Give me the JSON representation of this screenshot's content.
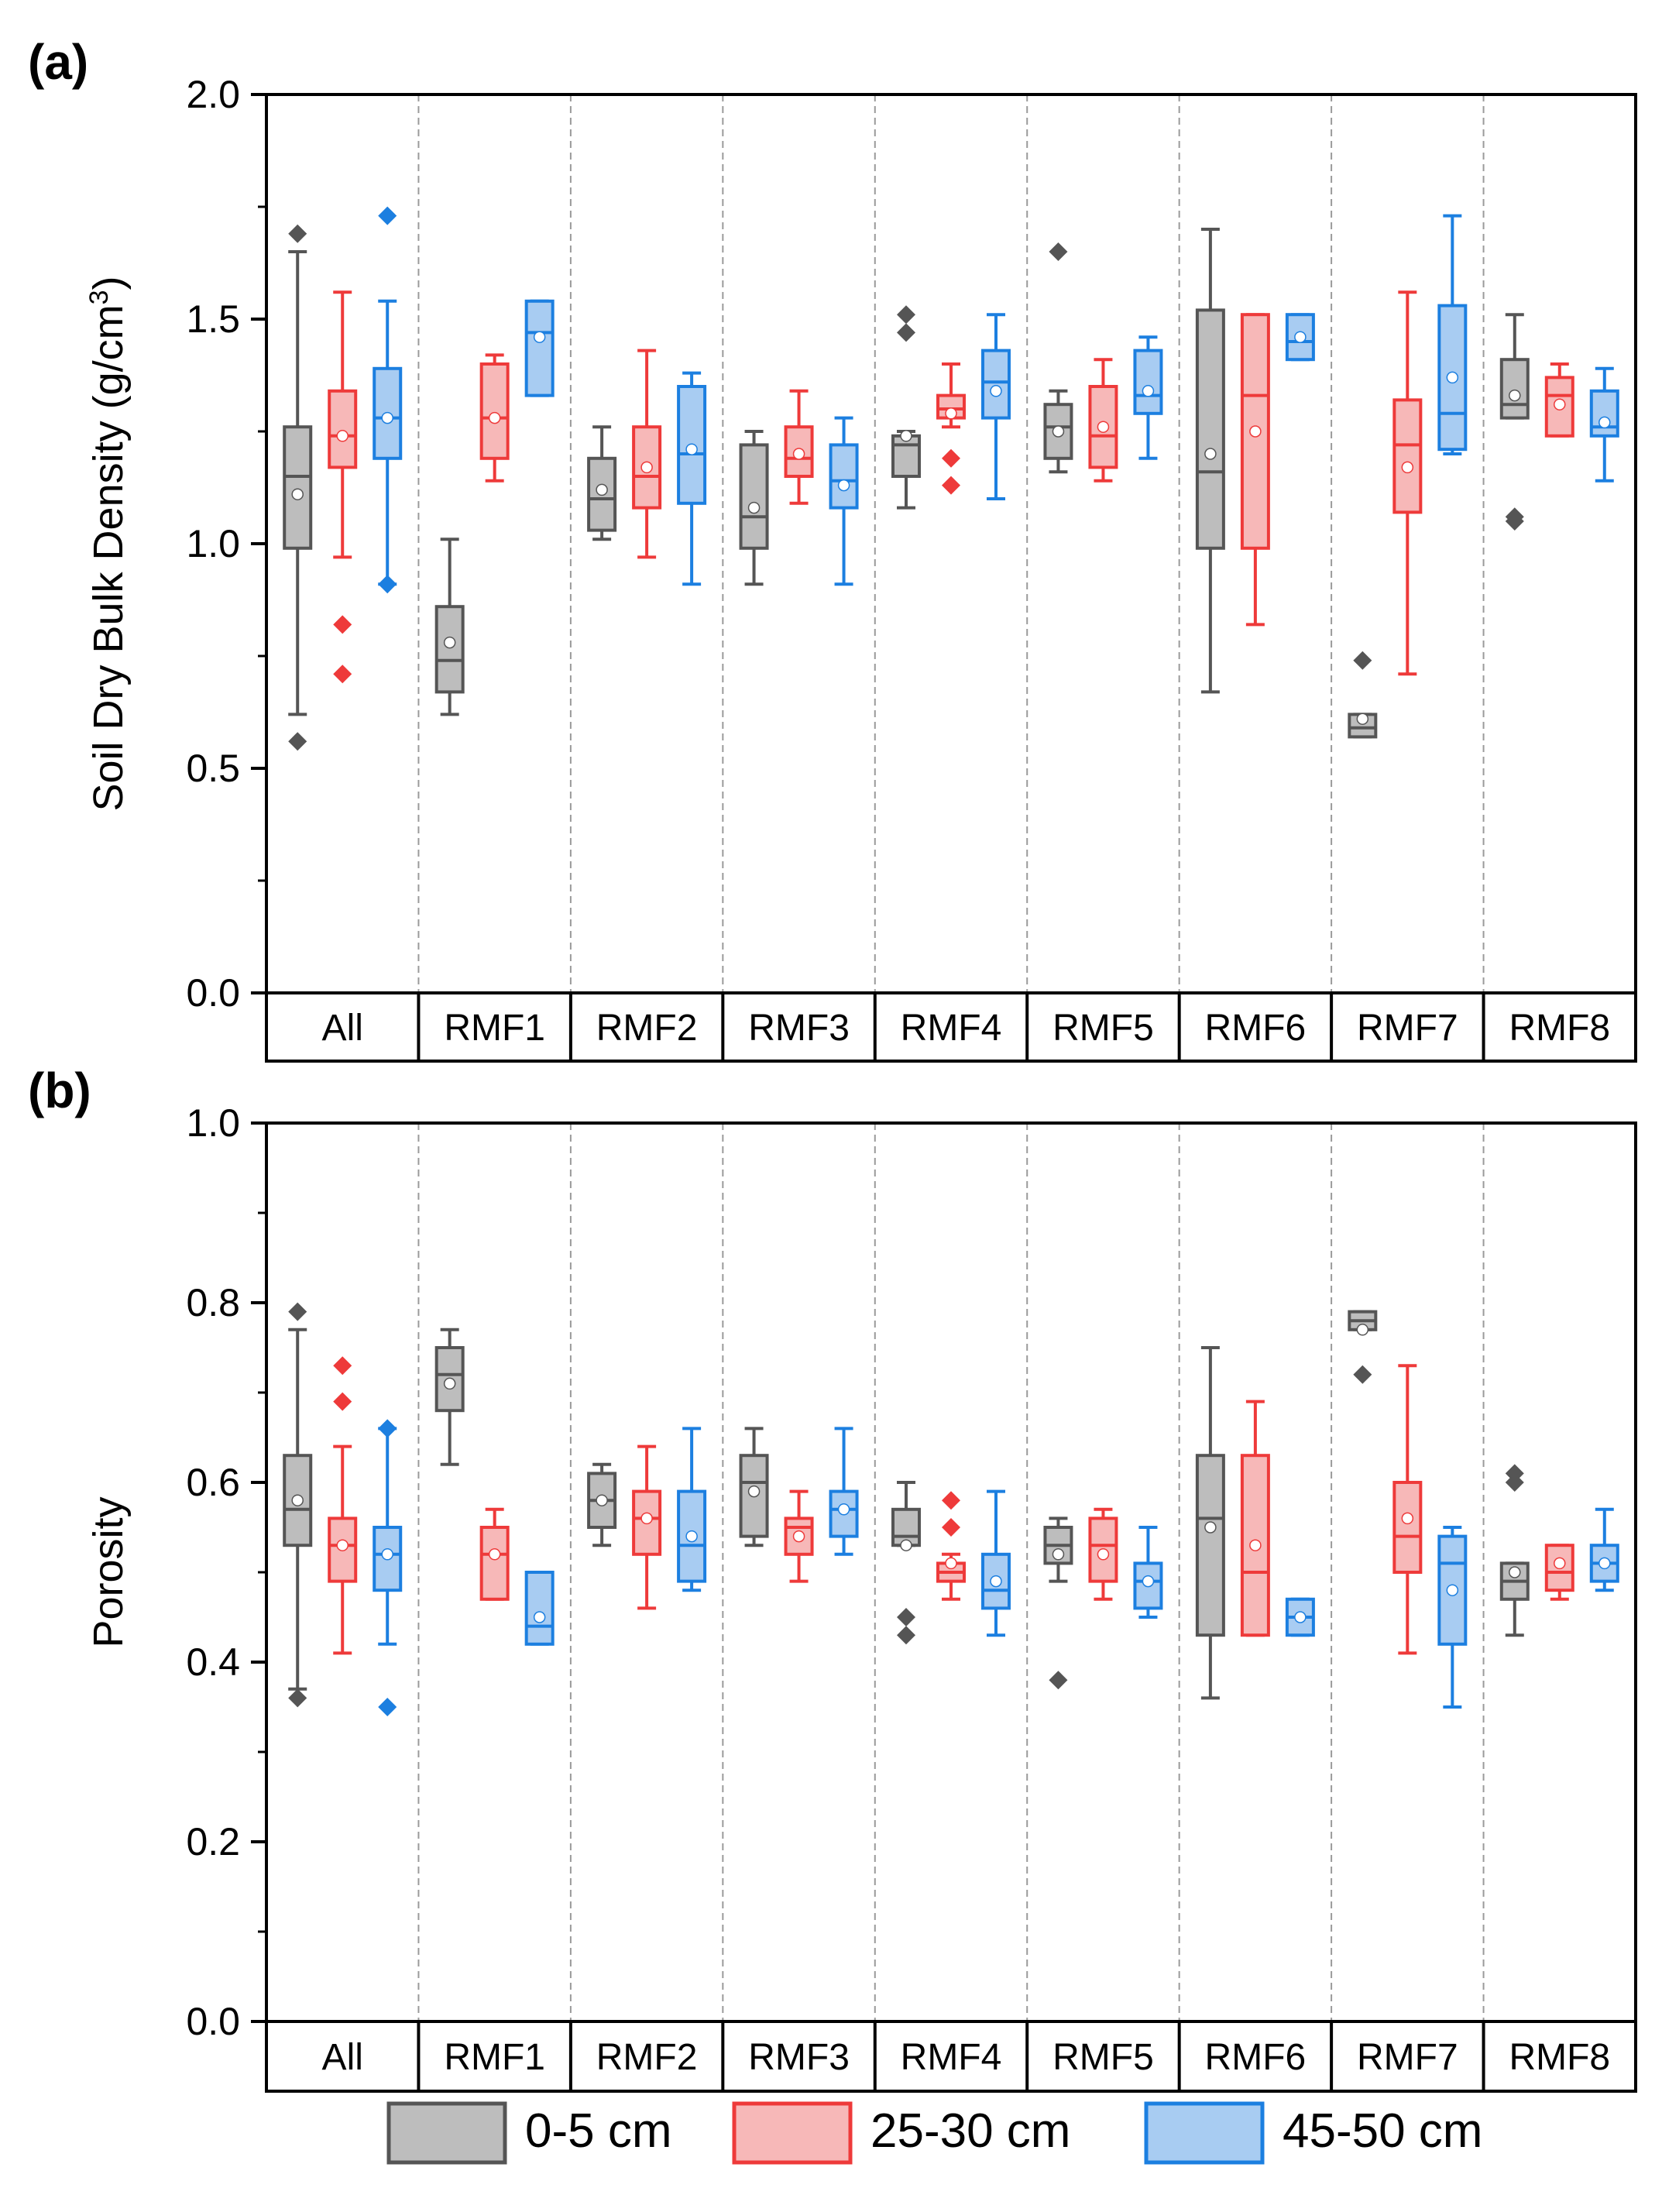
{
  "colors": {
    "axis": "#000000",
    "divider": "#9a9a9a",
    "mean_marker": "#ffffff"
  },
  "legend": {
    "items": [
      {
        "label": "0-5 cm",
        "stroke": "#555555",
        "fill": "#bdbdbd"
      },
      {
        "label": "25-30 cm",
        "stroke": "#ee3a3a",
        "fill": "#f7b8b8"
      },
      {
        "label": "45-50 cm",
        "stroke": "#1c7fe0",
        "fill": "#a8ccf2"
      }
    ]
  },
  "chart_data": [
    {
      "type": "box",
      "panel_label": "(a)",
      "title": "",
      "xlabel": "",
      "ylabel_main": "Soil Dry Bulk Density (g/cm",
      "ylabel_sup": "3",
      "ylabel_tail": ")",
      "ylim": [
        0,
        2.0
      ],
      "ytick_values": [
        0,
        0.5,
        1.0,
        1.5,
        2.0
      ],
      "ytick_labels": [
        "0.0",
        "0.5",
        "1.0",
        "1.5",
        "2.0"
      ],
      "ytick_minor": [
        0.25,
        0.75,
        1.25,
        1.75
      ],
      "categories": [
        "All",
        "RMF1",
        "RMF2",
        "RMF3",
        "RMF4",
        "RMF5",
        "RMF6",
        "RMF7",
        "RMF8"
      ],
      "series": [
        {
          "name": "0-5 cm",
          "boxes": [
            {
              "min": 0.62,
              "q1": 0.99,
              "median": 1.15,
              "q3": 1.26,
              "max": 1.65,
              "mean": 1.11,
              "outliers": [
                1.69,
                0.56
              ]
            },
            {
              "min": 0.62,
              "q1": 0.67,
              "median": 0.74,
              "q3": 0.86,
              "max": 1.01,
              "mean": 0.78,
              "outliers": []
            },
            {
              "min": 1.01,
              "q1": 1.03,
              "median": 1.1,
              "q3": 1.19,
              "max": 1.26,
              "mean": 1.12,
              "outliers": []
            },
            {
              "min": 0.91,
              "q1": 0.99,
              "median": 1.06,
              "q3": 1.22,
              "max": 1.25,
              "mean": 1.08,
              "outliers": []
            },
            {
              "min": 1.08,
              "q1": 1.15,
              "median": 1.22,
              "q3": 1.24,
              "max": 1.25,
              "mean": 1.24,
              "outliers": [
                1.51,
                1.47
              ]
            },
            {
              "min": 1.16,
              "q1": 1.19,
              "median": 1.26,
              "q3": 1.31,
              "max": 1.34,
              "mean": 1.25,
              "outliers": [
                1.65
              ]
            },
            {
              "min": 0.67,
              "q1": 0.99,
              "median": 1.16,
              "q3": 1.52,
              "max": 1.7,
              "mean": 1.2,
              "outliers": []
            },
            {
              "min": 0.57,
              "q1": 0.57,
              "median": 0.59,
              "q3": 0.62,
              "max": 0.62,
              "mean": 0.61,
              "outliers": [
                0.74
              ]
            },
            {
              "min": 1.28,
              "q1": 1.28,
              "median": 1.31,
              "q3": 1.41,
              "max": 1.51,
              "mean": 1.33,
              "outliers": [
                1.06,
                1.05
              ]
            }
          ]
        },
        {
          "name": "25-30 cm",
          "boxes": [
            {
              "min": 0.97,
              "q1": 1.17,
              "median": 1.24,
              "q3": 1.34,
              "max": 1.56,
              "mean": 1.24,
              "outliers": [
                0.82,
                0.71
              ]
            },
            {
              "min": 1.14,
              "q1": 1.19,
              "median": 1.28,
              "q3": 1.4,
              "max": 1.42,
              "mean": 1.28,
              "outliers": []
            },
            {
              "min": 0.97,
              "q1": 1.08,
              "median": 1.15,
              "q3": 1.26,
              "max": 1.43,
              "mean": 1.17,
              "outliers": []
            },
            {
              "min": 1.09,
              "q1": 1.15,
              "median": 1.19,
              "q3": 1.26,
              "max": 1.34,
              "mean": 1.2,
              "outliers": []
            },
            {
              "min": 1.26,
              "q1": 1.28,
              "median": 1.3,
              "q3": 1.33,
              "max": 1.4,
              "mean": 1.29,
              "outliers": [
                1.19,
                1.13
              ]
            },
            {
              "min": 1.14,
              "q1": 1.17,
              "median": 1.24,
              "q3": 1.35,
              "max": 1.41,
              "mean": 1.26,
              "outliers": []
            },
            {
              "min": 0.82,
              "q1": 0.99,
              "median": 1.33,
              "q3": 1.51,
              "max": 1.51,
              "mean": 1.25,
              "outliers": []
            },
            {
              "min": 0.71,
              "q1": 1.07,
              "median": 1.22,
              "q3": 1.32,
              "max": 1.56,
              "mean": 1.17,
              "outliers": []
            },
            {
              "min": 1.24,
              "q1": 1.24,
              "median": 1.33,
              "q3": 1.37,
              "max": 1.4,
              "mean": 1.31,
              "outliers": []
            }
          ]
        },
        {
          "name": "45-50 cm",
          "boxes": [
            {
              "min": 0.91,
              "q1": 1.19,
              "median": 1.28,
              "q3": 1.39,
              "max": 1.54,
              "mean": 1.28,
              "outliers": [
                1.73,
                0.91
              ]
            },
            {
              "min": 1.33,
              "q1": 1.33,
              "median": 1.47,
              "q3": 1.54,
              "max": 1.54,
              "mean": 1.46,
              "outliers": []
            },
            {
              "min": 0.91,
              "q1": 1.09,
              "median": 1.2,
              "q3": 1.35,
              "max": 1.38,
              "mean": 1.21,
              "outliers": []
            },
            {
              "min": 0.91,
              "q1": 1.08,
              "median": 1.14,
              "q3": 1.22,
              "max": 1.28,
              "mean": 1.13,
              "outliers": []
            },
            {
              "min": 1.1,
              "q1": 1.28,
              "median": 1.36,
              "q3": 1.43,
              "max": 1.51,
              "mean": 1.34,
              "outliers": []
            },
            {
              "min": 1.19,
              "q1": 1.29,
              "median": 1.33,
              "q3": 1.43,
              "max": 1.46,
              "mean": 1.34,
              "outliers": []
            },
            {
              "min": 1.41,
              "q1": 1.41,
              "median": 1.45,
              "q3": 1.51,
              "max": 1.51,
              "mean": 1.46,
              "outliers": []
            },
            {
              "min": 1.2,
              "q1": 1.21,
              "median": 1.29,
              "q3": 1.53,
              "max": 1.73,
              "mean": 1.37,
              "outliers": []
            },
            {
              "min": 1.14,
              "q1": 1.24,
              "median": 1.26,
              "q3": 1.34,
              "max": 1.39,
              "mean": 1.27,
              "outliers": []
            }
          ]
        }
      ]
    },
    {
      "type": "box",
      "panel_label": "(b)",
      "title": "",
      "xlabel": "",
      "ylabel_main": "Porosity",
      "ylabel_sup": "",
      "ylabel_tail": "",
      "ylim": [
        0,
        1.0
      ],
      "ytick_values": [
        0,
        0.2,
        0.4,
        0.6,
        0.8,
        1.0
      ],
      "ytick_labels": [
        "0.0",
        "0.2",
        "0.4",
        "0.6",
        "0.8",
        "1.0"
      ],
      "ytick_minor": [
        0.1,
        0.3,
        0.5,
        0.7,
        0.9
      ],
      "categories": [
        "All",
        "RMF1",
        "RMF2",
        "RMF3",
        "RMF4",
        "RMF5",
        "RMF6",
        "RMF7",
        "RMF8"
      ],
      "series": [
        {
          "name": "0-5 cm",
          "boxes": [
            {
              "min": 0.37,
              "q1": 0.53,
              "median": 0.57,
              "q3": 0.63,
              "max": 0.77,
              "mean": 0.58,
              "outliers": [
                0.79,
                0.36
              ]
            },
            {
              "min": 0.62,
              "q1": 0.68,
              "median": 0.72,
              "q3": 0.75,
              "max": 0.77,
              "mean": 0.71,
              "outliers": []
            },
            {
              "min": 0.53,
              "q1": 0.55,
              "median": 0.58,
              "q3": 0.61,
              "max": 0.62,
              "mean": 0.58,
              "outliers": []
            },
            {
              "min": 0.53,
              "q1": 0.54,
              "median": 0.6,
              "q3": 0.63,
              "max": 0.66,
              "mean": 0.59,
              "outliers": []
            },
            {
              "min": 0.53,
              "q1": 0.53,
              "median": 0.54,
              "q3": 0.57,
              "max": 0.6,
              "mean": 0.53,
              "outliers": [
                0.45,
                0.43
              ]
            },
            {
              "min": 0.49,
              "q1": 0.51,
              "median": 0.53,
              "q3": 0.55,
              "max": 0.56,
              "mean": 0.52,
              "outliers": [
                0.38
              ]
            },
            {
              "min": 0.36,
              "q1": 0.43,
              "median": 0.56,
              "q3": 0.63,
              "max": 0.75,
              "mean": 0.55,
              "outliers": []
            },
            {
              "min": 0.77,
              "q1": 0.77,
              "median": 0.78,
              "q3": 0.79,
              "max": 0.79,
              "mean": 0.77,
              "outliers": [
                0.72
              ]
            },
            {
              "min": 0.43,
              "q1": 0.47,
              "median": 0.49,
              "q3": 0.51,
              "max": 0.51,
              "mean": 0.5,
              "outliers": [
                0.61,
                0.6
              ]
            }
          ]
        },
        {
          "name": "25-30 cm",
          "boxes": [
            {
              "min": 0.41,
              "q1": 0.49,
              "median": 0.53,
              "q3": 0.56,
              "max": 0.64,
              "mean": 0.53,
              "outliers": [
                0.73,
                0.69
              ]
            },
            {
              "min": 0.47,
              "q1": 0.47,
              "median": 0.52,
              "q3": 0.55,
              "max": 0.57,
              "mean": 0.52,
              "outliers": []
            },
            {
              "min": 0.46,
              "q1": 0.52,
              "median": 0.56,
              "q3": 0.59,
              "max": 0.64,
              "mean": 0.56,
              "outliers": []
            },
            {
              "min": 0.49,
              "q1": 0.52,
              "median": 0.55,
              "q3": 0.56,
              "max": 0.59,
              "mean": 0.54,
              "outliers": []
            },
            {
              "min": 0.47,
              "q1": 0.49,
              "median": 0.5,
              "q3": 0.51,
              "max": 0.52,
              "mean": 0.51,
              "outliers": [
                0.58,
                0.55
              ]
            },
            {
              "min": 0.47,
              "q1": 0.49,
              "median": 0.53,
              "q3": 0.56,
              "max": 0.57,
              "mean": 0.52,
              "outliers": []
            },
            {
              "min": 0.43,
              "q1": 0.43,
              "median": 0.5,
              "q3": 0.63,
              "max": 0.69,
              "mean": 0.53,
              "outliers": []
            },
            {
              "min": 0.41,
              "q1": 0.5,
              "median": 0.54,
              "q3": 0.6,
              "max": 0.73,
              "mean": 0.56,
              "outliers": []
            },
            {
              "min": 0.47,
              "q1": 0.48,
              "median": 0.5,
              "q3": 0.53,
              "max": 0.53,
              "mean": 0.51,
              "outliers": []
            }
          ]
        },
        {
          "name": "45-50 cm",
          "boxes": [
            {
              "min": 0.42,
              "q1": 0.48,
              "median": 0.52,
              "q3": 0.55,
              "max": 0.66,
              "mean": 0.52,
              "outliers": [
                0.66,
                0.35
              ]
            },
            {
              "min": 0.42,
              "q1": 0.42,
              "median": 0.44,
              "q3": 0.5,
              "max": 0.5,
              "mean": 0.45,
              "outliers": []
            },
            {
              "min": 0.48,
              "q1": 0.49,
              "median": 0.53,
              "q3": 0.59,
              "max": 0.66,
              "mean": 0.54,
              "outliers": []
            },
            {
              "min": 0.52,
              "q1": 0.54,
              "median": 0.57,
              "q3": 0.59,
              "max": 0.66,
              "mean": 0.57,
              "outliers": []
            },
            {
              "min": 0.43,
              "q1": 0.46,
              "median": 0.48,
              "q3": 0.52,
              "max": 0.59,
              "mean": 0.49,
              "outliers": []
            },
            {
              "min": 0.45,
              "q1": 0.46,
              "median": 0.49,
              "q3": 0.51,
              "max": 0.55,
              "mean": 0.49,
              "outliers": []
            },
            {
              "min": 0.43,
              "q1": 0.43,
              "median": 0.45,
              "q3": 0.47,
              "max": 0.47,
              "mean": 0.45,
              "outliers": []
            },
            {
              "min": 0.35,
              "q1": 0.42,
              "median": 0.51,
              "q3": 0.54,
              "max": 0.55,
              "mean": 0.48,
              "outliers": []
            },
            {
              "min": 0.48,
              "q1": 0.49,
              "median": 0.51,
              "q3": 0.53,
              "max": 0.57,
              "mean": 0.51,
              "outliers": []
            }
          ]
        }
      ]
    }
  ]
}
